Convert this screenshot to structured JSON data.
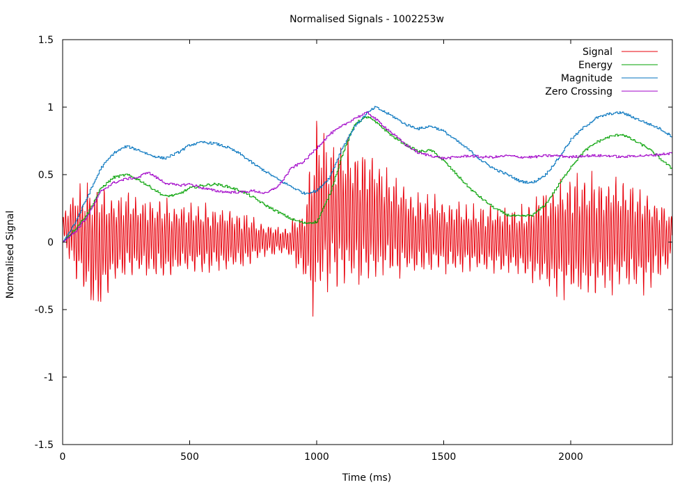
{
  "chart_data": {
    "type": "line",
    "title": "Normalised Signals - 1002253w",
    "xlabel": "Time (ms)",
    "ylabel": "Normalised Signal",
    "xlim": [
      0,
      2400
    ],
    "ylim": [
      -1.5,
      1.5
    ],
    "xticks": [
      0,
      500,
      1000,
      1500,
      2000
    ],
    "yticks": [
      -1.5,
      -1,
      -0.5,
      0,
      0.5,
      1,
      1.5
    ],
    "xtick_labels": [
      "0",
      "500",
      "1000",
      "1500",
      "2000"
    ],
    "ytick_labels": [
      "-1.5",
      "-1",
      "-0.5",
      "0",
      "0.5",
      "1",
      "1.5"
    ],
    "grid": false,
    "legend_position": "top-right",
    "series": [
      {
        "name": "Signal",
        "color": "#e8000b",
        "style": "oscillating waveform",
        "envelope": {
          "x": [
            0,
            50,
            100,
            140,
            200,
            300,
            400,
            500,
            600,
            700,
            800,
            880,
            950,
            1000,
            1010,
            1050,
            1100,
            1150,
            1200,
            1250,
            1300,
            1400,
            1500,
            1600,
            1700,
            1800,
            1900,
            2000,
            2100,
            2200,
            2300,
            2400
          ],
          "max": [
            0.2,
            0.45,
            0.48,
            0.5,
            0.42,
            0.38,
            0.35,
            0.33,
            0.3,
            0.25,
            0.15,
            0.12,
            0.3,
            1.0,
            0.9,
            0.82,
            0.8,
            0.78,
            0.75,
            0.65,
            0.55,
            0.4,
            0.35,
            0.3,
            0.3,
            0.28,
            0.45,
            0.55,
            0.55,
            0.5,
            0.45,
            0.25
          ],
          "min": [
            0.0,
            -0.3,
            -0.48,
            -0.58,
            -0.35,
            -0.28,
            -0.3,
            -0.28,
            -0.26,
            -0.22,
            -0.12,
            -0.1,
            -0.3,
            -0.72,
            -0.45,
            -0.42,
            -0.38,
            -0.4,
            -0.38,
            -0.33,
            -0.3,
            -0.28,
            -0.26,
            -0.25,
            -0.25,
            -0.28,
            -0.4,
            -0.48,
            -0.45,
            -0.4,
            -0.4,
            -0.2
          ]
        }
      },
      {
        "name": "Energy",
        "color": "#00a000",
        "x": [
          0,
          50,
          100,
          150,
          200,
          250,
          300,
          350,
          400,
          450,
          500,
          550,
          600,
          650,
          700,
          750,
          800,
          850,
          900,
          950,
          1000,
          1050,
          1100,
          1150,
          1200,
          1250,
          1300,
          1350,
          1400,
          1450,
          1500,
          1550,
          1600,
          1650,
          1700,
          1750,
          1800,
          1850,
          1900,
          1950,
          2000,
          2050,
          2100,
          2150,
          2200,
          2250,
          2300,
          2350,
          2400
        ],
        "y": [
          0.0,
          0.1,
          0.22,
          0.4,
          0.48,
          0.5,
          0.46,
          0.4,
          0.34,
          0.35,
          0.4,
          0.42,
          0.43,
          0.41,
          0.38,
          0.33,
          0.27,
          0.22,
          0.17,
          0.14,
          0.15,
          0.35,
          0.65,
          0.88,
          0.93,
          0.86,
          0.78,
          0.72,
          0.67,
          0.68,
          0.6,
          0.5,
          0.4,
          0.32,
          0.25,
          0.2,
          0.19,
          0.2,
          0.28,
          0.42,
          0.56,
          0.67,
          0.74,
          0.78,
          0.8,
          0.75,
          0.7,
          0.62,
          0.54
        ]
      },
      {
        "name": "Magnitude",
        "color": "#0072bd",
        "x": [
          0,
          50,
          100,
          150,
          200,
          250,
          300,
          350,
          400,
          450,
          500,
          550,
          600,
          650,
          700,
          750,
          800,
          850,
          900,
          950,
          1000,
          1050,
          1100,
          1150,
          1200,
          1230,
          1300,
          1350,
          1400,
          1450,
          1500,
          1550,
          1600,
          1650,
          1700,
          1750,
          1800,
          1850,
          1900,
          1950,
          2000,
          2050,
          2100,
          2150,
          2200,
          2250,
          2300,
          2350,
          2400
        ],
        "y": [
          0.0,
          0.15,
          0.35,
          0.55,
          0.66,
          0.71,
          0.68,
          0.64,
          0.62,
          0.66,
          0.72,
          0.74,
          0.73,
          0.7,
          0.65,
          0.58,
          0.52,
          0.46,
          0.41,
          0.36,
          0.38,
          0.48,
          0.7,
          0.86,
          0.96,
          1.0,
          0.93,
          0.87,
          0.84,
          0.86,
          0.82,
          0.75,
          0.68,
          0.6,
          0.54,
          0.5,
          0.45,
          0.44,
          0.5,
          0.62,
          0.76,
          0.85,
          0.92,
          0.95,
          0.96,
          0.92,
          0.88,
          0.84,
          0.78
        ]
      },
      {
        "name": "Zero Crossing",
        "color": "#a000c8",
        "x": [
          0,
          50,
          100,
          150,
          200,
          250,
          300,
          330,
          350,
          400,
          450,
          500,
          550,
          600,
          650,
          700,
          750,
          800,
          850,
          900,
          950,
          1000,
          1050,
          1100,
          1150,
          1200,
          1250,
          1300,
          1350,
          1400,
          1450,
          1500,
          1550,
          1600,
          1650,
          1700,
          1750,
          1800,
          1850,
          1900,
          1950,
          2000,
          2050,
          2100,
          2150,
          2200,
          2250,
          2300,
          2350,
          2400
        ],
        "y": [
          0.0,
          0.08,
          0.2,
          0.38,
          0.44,
          0.47,
          0.48,
          0.52,
          0.5,
          0.44,
          0.42,
          0.43,
          0.4,
          0.38,
          0.37,
          0.37,
          0.38,
          0.36,
          0.42,
          0.55,
          0.6,
          0.7,
          0.8,
          0.86,
          0.92,
          0.96,
          0.88,
          0.8,
          0.72,
          0.66,
          0.64,
          0.62,
          0.63,
          0.64,
          0.63,
          0.63,
          0.64,
          0.63,
          0.63,
          0.64,
          0.64,
          0.63,
          0.64,
          0.64,
          0.64,
          0.63,
          0.64,
          0.64,
          0.65,
          0.66
        ]
      }
    ]
  }
}
